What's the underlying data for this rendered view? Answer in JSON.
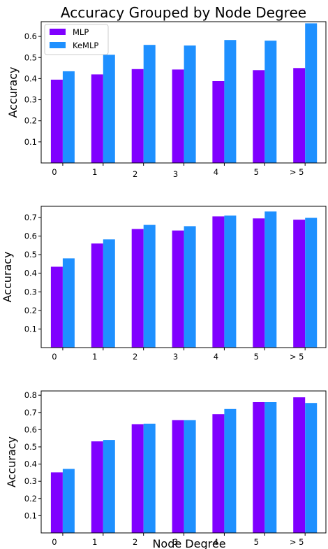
{
  "figure": {
    "title": "Accuracy Grouped by Node Degree",
    "xlabel": "Node Degree"
  },
  "colors": {
    "MLP": "#7f00ff",
    "KeMLP": "#1e90ff"
  },
  "chart_data": [
    {
      "type": "bar",
      "categories": [
        "0",
        "1",
        "2",
        "3",
        "4",
        "5",
        "> 5"
      ],
      "ylabel": "Accuracy",
      "yticks": [
        0.1,
        0.2,
        0.3,
        0.4,
        0.5,
        0.6
      ],
      "ylim": [
        0,
        0.67
      ],
      "legend": "top-left",
      "series": [
        {
          "name": "MLP",
          "values": [
            0.395,
            0.42,
            0.445,
            0.443,
            0.388,
            0.44,
            0.45
          ]
        },
        {
          "name": "KeMLP",
          "values": [
            0.435,
            0.513,
            0.56,
            0.557,
            0.583,
            0.58,
            0.662
          ]
        }
      ]
    },
    {
      "type": "bar",
      "categories": [
        "0",
        "1",
        "2",
        "3",
        "4",
        "5",
        "> 5"
      ],
      "ylabel": "Accuracy",
      "yticks": [
        0.1,
        0.2,
        0.3,
        0.4,
        0.5,
        0.6,
        0.7
      ],
      "ylim": [
        0,
        0.76
      ],
      "series": [
        {
          "name": "MLP",
          "values": [
            0.435,
            0.56,
            0.638,
            0.63,
            0.706,
            0.695,
            0.688
          ]
        },
        {
          "name": "KeMLP",
          "values": [
            0.48,
            0.582,
            0.66,
            0.653,
            0.71,
            0.732,
            0.698
          ]
        }
      ]
    },
    {
      "type": "bar",
      "categories": [
        "0",
        "1",
        "2",
        "3",
        "4",
        "5",
        "> 5"
      ],
      "ylabel": "Accuracy",
      "yticks": [
        0.1,
        0.2,
        0.3,
        0.4,
        0.5,
        0.6,
        0.7,
        0.8
      ],
      "ylim": [
        0,
        0.825
      ],
      "series": [
        {
          "name": "MLP",
          "values": [
            0.352,
            0.532,
            0.632,
            0.655,
            0.69,
            0.76,
            0.788
          ]
        },
        {
          "name": "KeMLP",
          "values": [
            0.372,
            0.54,
            0.635,
            0.655,
            0.72,
            0.76,
            0.755
          ]
        }
      ]
    }
  ]
}
